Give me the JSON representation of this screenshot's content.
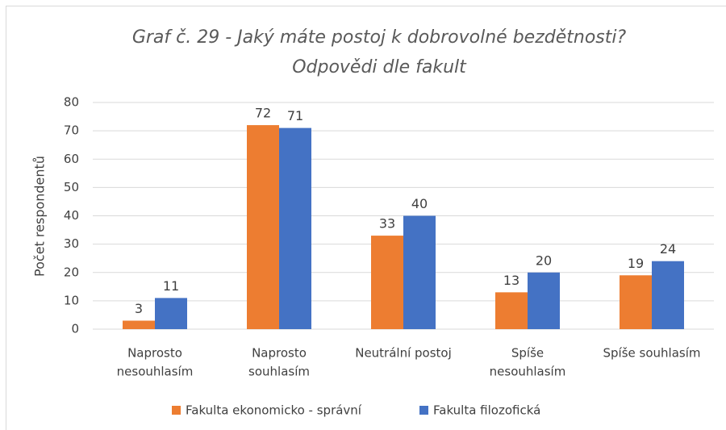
{
  "chart_data": {
    "type": "bar",
    "title": "Graf č. 29 - Jaký máte postoj k dobrovolné bezdětnosti?",
    "subtitle": "Odpovědi dle fakult",
    "y_label": "Počet respondentů",
    "categories": [
      [
        "Naprosto",
        "nesouhlasím"
      ],
      [
        "Naprosto",
        "souhlasím"
      ],
      [
        "Neutrální postoj"
      ],
      [
        "Spíše",
        "nesouhlasím"
      ],
      [
        "Spíše souhlasím"
      ]
    ],
    "series": [
      {
        "name": "Fakulta ekonomicko - správní",
        "color": "#ed7d31",
        "values": [
          3,
          72,
          33,
          13,
          19
        ]
      },
      {
        "name": "Fakulta filozofická",
        "color": "#4472c4",
        "values": [
          11,
          71,
          40,
          20,
          24
        ]
      }
    ],
    "ylim": [
      0,
      80
    ],
    "yticks": [
      0,
      10,
      20,
      30,
      40,
      50,
      60,
      70,
      80
    ],
    "grid": true,
    "legend": "bottom"
  }
}
